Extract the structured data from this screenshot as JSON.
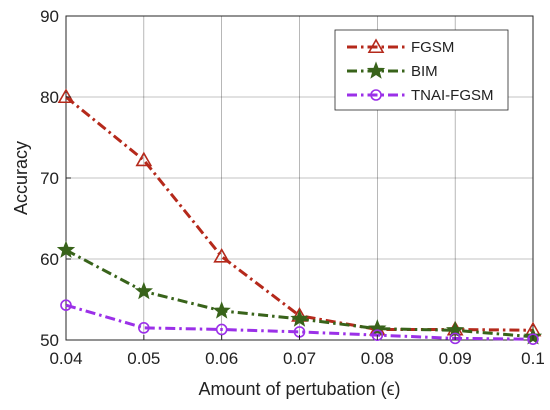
{
  "chart_data": {
    "type": "line",
    "xlabel": "Amount of pertubation (ϵ)",
    "ylabel": "Accuracy",
    "xlim": [
      0.04,
      0.1
    ],
    "ylim": [
      50,
      90
    ],
    "xticks": [
      "0.04",
      "0.05",
      "0.06",
      "0.07",
      "0.08",
      "0.09",
      "0.1"
    ],
    "yticks": [
      "50",
      "60",
      "70",
      "80",
      "90"
    ],
    "x": [
      0.04,
      0.05,
      0.06,
      0.07,
      0.08,
      0.09,
      0.1
    ],
    "grid": true,
    "legend_position": "top-right",
    "series": [
      {
        "name": "FGSM",
        "color": "#b5291b",
        "marker": "triangle",
        "values": [
          80.0,
          72.2,
          60.3,
          53.0,
          51.3,
          51.3,
          51.2
        ]
      },
      {
        "name": "BIM",
        "color": "#38631a",
        "marker": "star",
        "values": [
          61.1,
          56.0,
          53.6,
          52.6,
          51.4,
          51.2,
          50.4
        ]
      },
      {
        "name": "TNAI-FGSM",
        "color": "#9b30e8",
        "marker": "circle",
        "values": [
          54.3,
          51.5,
          51.3,
          51.0,
          50.6,
          50.2,
          50.1
        ]
      }
    ]
  }
}
